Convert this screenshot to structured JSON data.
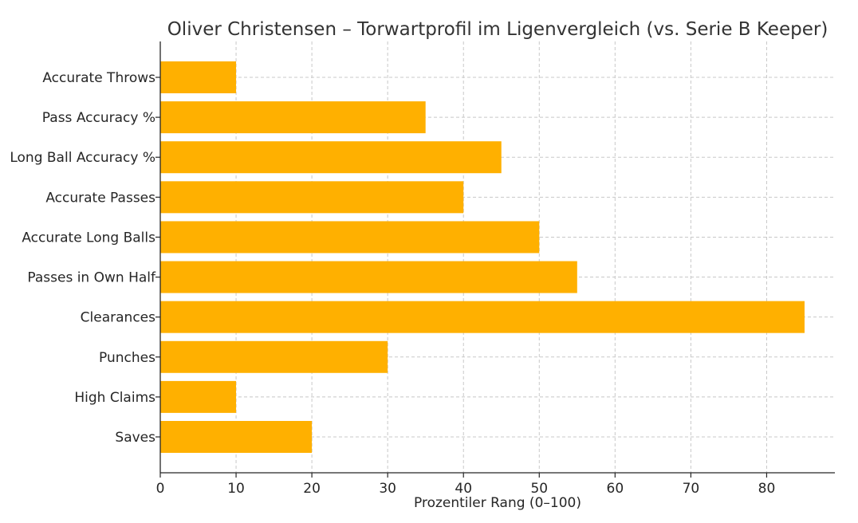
{
  "chart_data": {
    "type": "bar",
    "orientation": "horizontal",
    "title": "Oliver Christensen – Torwartprofil im Ligenvergleich (vs. Serie B Keeper)",
    "xlabel": "Prozentiler Rang (0–100)",
    "ylabel": "",
    "categories": [
      "Accurate Throws",
      "Pass Accuracy %",
      "Long Ball Accuracy %",
      "Accurate Passes",
      "Accurate Long Balls",
      "Passes in Own Half",
      "Clearances",
      "Punches",
      "High Claims",
      "Saves"
    ],
    "values": [
      10,
      35,
      45,
      40,
      50,
      55,
      85,
      30,
      10,
      20
    ],
    "xlim": [
      0,
      89
    ],
    "xticks": [
      0,
      10,
      20,
      30,
      40,
      50,
      60,
      70,
      80
    ],
    "bar_color": "#FFB000",
    "grid": true,
    "legend": "none"
  }
}
